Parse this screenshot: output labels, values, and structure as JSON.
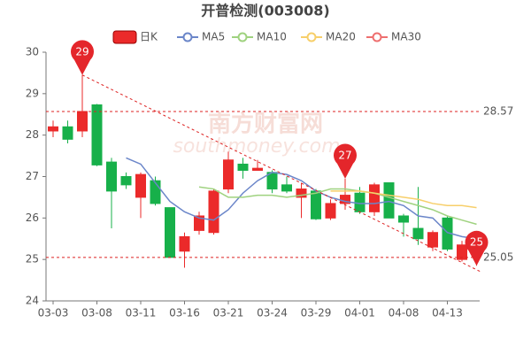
{
  "chart_data": {
    "type": "candlestick",
    "title": "开普检测(003008)",
    "watermark": [
      "南方财富网",
      "southmoney.com"
    ],
    "categories": [
      "03-03",
      null,
      null,
      "03-08",
      null,
      null,
      "03-11",
      null,
      null,
      "03-16",
      null,
      null,
      "03-21",
      null,
      null,
      "03-24",
      null,
      null,
      "03-29",
      null,
      null,
      "04-01",
      null,
      null,
      "04-08",
      null,
      null,
      "04-13",
      null,
      null
    ],
    "candles": {
      "name": "日K",
      "up_color": "#eb2a2a",
      "down_color": "#17b04a",
      "open": [
        28.1,
        28.2,
        28.1,
        28.73,
        27.35,
        27.0,
        26.5,
        26.9,
        26.25,
        25.2,
        25.7,
        25.65,
        26.7,
        27.3,
        27.15,
        27.1,
        26.8,
        26.5,
        26.65,
        26.0,
        26.35,
        26.6,
        26.15,
        26.85,
        26.05,
        25.75,
        25.3,
        26.0,
        25.0,
        25.25
      ],
      "high": [
        28.35,
        28.35,
        29.45,
        28.75,
        27.45,
        27.1,
        27.1,
        27.0,
        26.25,
        25.65,
        26.15,
        26.7,
        27.6,
        27.45,
        27.4,
        27.15,
        27.0,
        26.85,
        26.7,
        26.45,
        26.95,
        26.75,
        26.85,
        26.85,
        26.1,
        26.75,
        25.7,
        26.05,
        25.45,
        25.5
      ],
      "low": [
        27.95,
        27.8,
        27.95,
        27.25,
        25.75,
        26.7,
        26.0,
        26.3,
        25.05,
        24.8,
        25.6,
        25.6,
        26.6,
        26.95,
        27.15,
        26.6,
        26.6,
        26.0,
        25.95,
        25.95,
        26.2,
        26.1,
        26.05,
        26.0,
        25.55,
        25.35,
        25.2,
        25.2,
        24.95,
        24.85
      ],
      "close": [
        28.2,
        27.9,
        28.57,
        27.28,
        26.65,
        26.8,
        27.05,
        26.35,
        25.05,
        25.55,
        26.05,
        26.65,
        27.4,
        27.15,
        27.2,
        26.7,
        26.65,
        26.7,
        25.98,
        26.35,
        26.55,
        26.15,
        26.8,
        26.0,
        25.9,
        25.5,
        25.65,
        25.25,
        25.35,
        25.4
      ]
    },
    "series": [
      {
        "name": "MA5",
        "color": "#6b86c9",
        "values": [
          null,
          null,
          null,
          null,
          null,
          27.45,
          27.3,
          26.85,
          26.4,
          26.15,
          26.0,
          25.95,
          26.2,
          26.6,
          26.9,
          27.1,
          27.05,
          26.9,
          26.65,
          26.5,
          26.4,
          26.35,
          26.35,
          26.4,
          26.3,
          26.05,
          26.0,
          25.65,
          25.55,
          25.5
        ]
      },
      {
        "name": "MA10",
        "color": "#9fd27f",
        "values": [
          null,
          null,
          null,
          null,
          null,
          null,
          null,
          null,
          null,
          null,
          26.75,
          26.7,
          26.5,
          26.5,
          26.55,
          26.55,
          26.5,
          26.55,
          26.6,
          26.7,
          26.7,
          26.65,
          26.6,
          26.5,
          26.4,
          26.3,
          26.2,
          26.05,
          25.95,
          25.85
        ]
      },
      {
        "name": "MA20",
        "color": "#f7cf6a",
        "values": [
          null,
          null,
          null,
          null,
          null,
          null,
          null,
          null,
          null,
          null,
          null,
          null,
          null,
          null,
          null,
          null,
          null,
          null,
          null,
          26.65,
          26.65,
          26.65,
          26.6,
          26.55,
          26.5,
          26.45,
          26.35,
          26.3,
          26.3,
          26.25
        ]
      },
      {
        "name": "MA30",
        "color": "#ee6f6f",
        "values": [
          null,
          null,
          null,
          null,
          null,
          null,
          null,
          null,
          null,
          null,
          null,
          null,
          null,
          null,
          null,
          null,
          null,
          null,
          null,
          null,
          null,
          null,
          null,
          null,
          null,
          null,
          null,
          null,
          null,
          null
        ]
      }
    ],
    "ylim": [
      24,
      30
    ],
    "yticks": [
      24,
      25,
      26,
      27,
      28,
      29,
      30
    ],
    "mark_lines": [
      {
        "value": 28.57,
        "label": "28.57"
      },
      {
        "value": 25.05,
        "label": "25.05"
      }
    ],
    "trend_line": [
      {
        "x": 2,
        "value": 29.45
      },
      {
        "x": 29.3,
        "value": 24.7
      }
    ],
    "mark_points": [
      {
        "x": 2,
        "value": 29.45,
        "label": "29"
      },
      {
        "x": 20,
        "value": 26.95,
        "label": "27"
      },
      {
        "x": 29,
        "value": 24.85,
        "label": "25"
      }
    ]
  }
}
